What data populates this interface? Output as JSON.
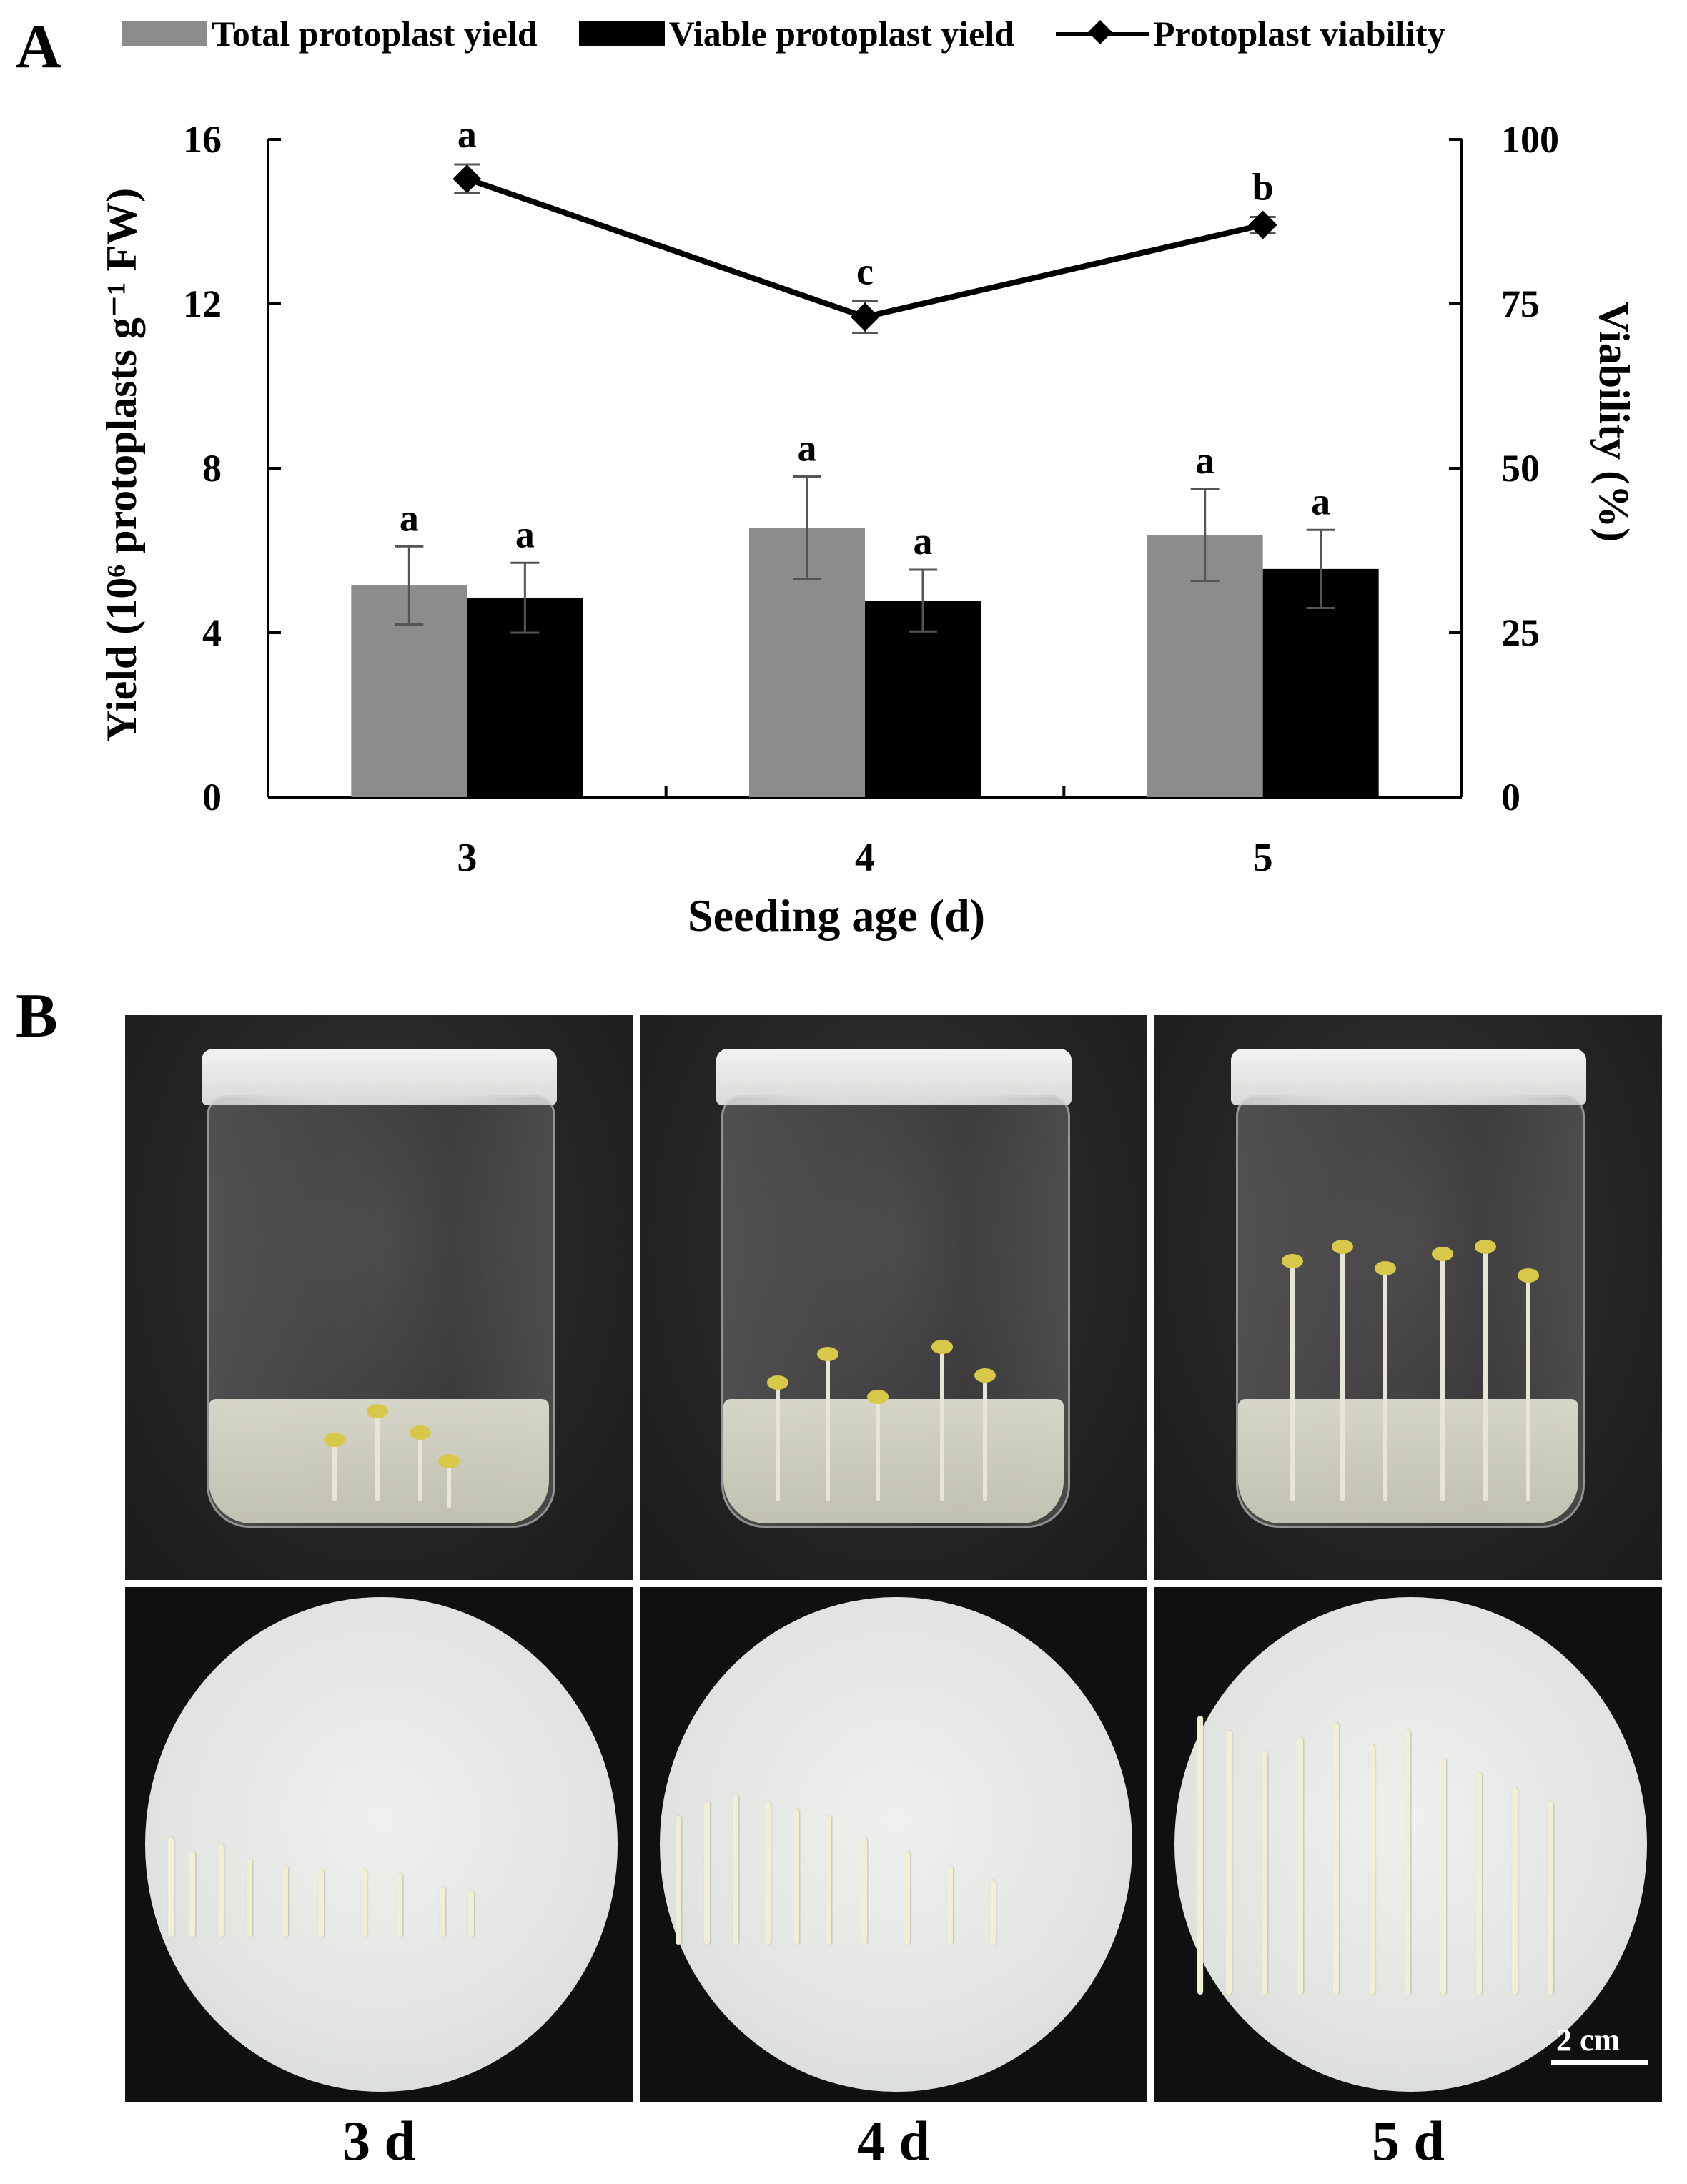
{
  "panels": {
    "a": "A",
    "b": "B"
  },
  "legend": {
    "total": "Total protoplast yield",
    "viable": "Viable protoplast yield",
    "viability": "Protoplast viability"
  },
  "chart_data": {
    "type": "bar",
    "categories": [
      "3",
      "4",
      "5"
    ],
    "xlabel": "Seeding age (d)",
    "ylabel": "Yield (10⁶ protoplasts g⁻¹ FW)",
    "y2label": "Viability (%)",
    "ylim": [
      0,
      16
    ],
    "y2lim": [
      0,
      100
    ],
    "yticks": [
      "0",
      "4",
      "8",
      "12",
      "16"
    ],
    "y2ticks": [
      "0",
      "25",
      "50",
      "75",
      "100"
    ],
    "grid": false,
    "legend_position": "top",
    "series": [
      {
        "name": "Total protoplast yield",
        "kind": "bar",
        "axis": "left",
        "color": "#8c8c8c",
        "values": [
          5.15,
          6.55,
          6.38
        ],
        "errors": [
          0.95,
          1.25,
          1.12
        ],
        "letters": [
          "a",
          "a",
          "a"
        ]
      },
      {
        "name": "Viable protoplast yield",
        "kind": "bar",
        "axis": "left",
        "color": "#000000",
        "values": [
          4.85,
          4.78,
          5.55
        ],
        "errors": [
          0.85,
          0.75,
          0.95
        ],
        "letters": [
          "a",
          "a",
          "a"
        ]
      },
      {
        "name": "Protoplast viability",
        "kind": "line",
        "axis": "right",
        "color": "#000000",
        "values": [
          94,
          73,
          87
        ],
        "errors": [
          2.2,
          2.4,
          1.2
        ],
        "letters": [
          "a",
          "c",
          "b"
        ]
      }
    ]
  },
  "photos": {
    "day_labels": [
      "3 d",
      "4 d",
      "5 d"
    ],
    "scale_bar": "2 cm"
  }
}
